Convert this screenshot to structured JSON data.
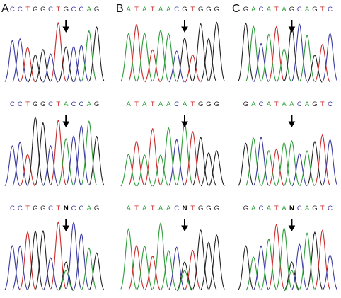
{
  "colors": {
    "A": "#2e9c3a",
    "C": "#3a3aa0",
    "G": "#222222",
    "T": "#cc2a2a",
    "N": "#000000"
  },
  "panels": [
    {
      "label": "A",
      "rows": [
        {
          "sequence": "CCTGGCTGCCAG",
          "arrow_base_index": 7
        },
        {
          "sequence": "CCTGGCTACCAG",
          "arrow_base_index": 7
        },
        {
          "sequence": "CCTGGCTNCCAG",
          "arrow_base_index": 7
        }
      ]
    },
    {
      "label": "B",
      "rows": [
        {
          "sequence": "ATATAACGTGGG",
          "arrow_base_index": 7
        },
        {
          "sequence": "ATATAACATGGG",
          "arrow_base_index": 7
        },
        {
          "sequence": "ATATAACNTGGG",
          "arrow_base_index": 7
        }
      ]
    },
    {
      "label": "C",
      "rows": [
        {
          "sequence": "GACATAGCAGTC",
          "arrow_base_index": 6
        },
        {
          "sequence": "GACATAACAGTC",
          "arrow_base_index": 6
        },
        {
          "sequence": "GACATANCAGTC",
          "arrow_base_index": 6
        }
      ]
    }
  ]
}
